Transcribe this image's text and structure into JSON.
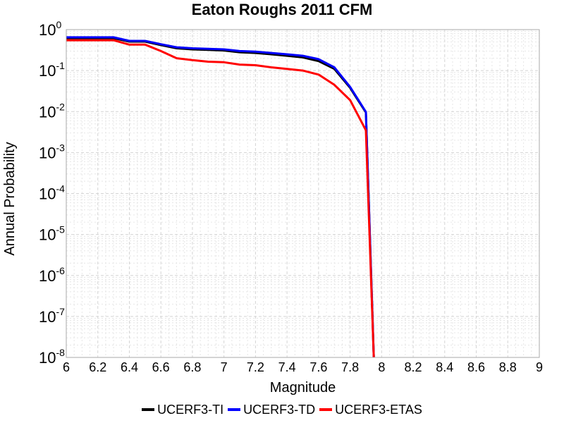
{
  "chart_data": {
    "type": "line",
    "title": "Eaton Roughs 2011 CFM",
    "xlabel": "Magnitude",
    "ylabel": "Annual Probability",
    "xlim": [
      6,
      9
    ],
    "ylim": [
      1e-08,
      1
    ],
    "y_scale": "log",
    "grid": true,
    "legend_position": "bottom",
    "x_ticks": [
      "6",
      "6.2",
      "6.4",
      "6.6",
      "6.8",
      "7",
      "7.2",
      "7.4",
      "7.6",
      "7.8",
      "8",
      "8.2",
      "8.4",
      "8.6",
      "8.8",
      "9"
    ],
    "y_ticks": [
      {
        "base": "10",
        "exp": "0"
      },
      {
        "base": "10",
        "exp": "-1"
      },
      {
        "base": "10",
        "exp": "-2"
      },
      {
        "base": "10",
        "exp": "-3"
      },
      {
        "base": "10",
        "exp": "-4"
      },
      {
        "base": "10",
        "exp": "-5"
      },
      {
        "base": "10",
        "exp": "-6"
      },
      {
        "base": "10",
        "exp": "-7"
      },
      {
        "base": "10",
        "exp": "-8"
      }
    ],
    "series": [
      {
        "name": "UCERF3-TI",
        "color": "#000000",
        "x": [
          6.0,
          6.1,
          6.2,
          6.3,
          6.4,
          6.5,
          6.6,
          6.7,
          6.8,
          6.9,
          7.0,
          7.1,
          7.2,
          7.3,
          7.4,
          7.5,
          7.6,
          7.7,
          7.8,
          7.9,
          7.95
        ],
        "y": [
          0.62,
          0.62,
          0.62,
          0.62,
          0.51,
          0.51,
          0.42,
          0.35,
          0.33,
          0.32,
          0.31,
          0.28,
          0.27,
          0.25,
          0.23,
          0.21,
          0.17,
          0.11,
          0.038,
          0.0095,
          1e-08
        ]
      },
      {
        "name": "UCERF3-TD",
        "color": "#0000ff",
        "x": [
          6.0,
          6.1,
          6.2,
          6.3,
          6.4,
          6.5,
          6.6,
          6.7,
          6.8,
          6.9,
          7.0,
          7.1,
          7.2,
          7.3,
          7.4,
          7.5,
          7.6,
          7.7,
          7.8,
          7.9,
          7.95
        ],
        "y": [
          0.65,
          0.65,
          0.65,
          0.65,
          0.53,
          0.53,
          0.44,
          0.37,
          0.35,
          0.34,
          0.33,
          0.3,
          0.29,
          0.27,
          0.25,
          0.23,
          0.19,
          0.12,
          0.04,
          0.0098,
          1e-08
        ]
      },
      {
        "name": "UCERF3-ETAS",
        "color": "#ff0000",
        "x": [
          6.0,
          6.1,
          6.2,
          6.3,
          6.4,
          6.5,
          6.6,
          6.7,
          6.8,
          6.9,
          7.0,
          7.1,
          7.2,
          7.3,
          7.4,
          7.5,
          7.6,
          7.7,
          7.8,
          7.9,
          7.95
        ],
        "y": [
          0.55,
          0.55,
          0.55,
          0.55,
          0.43,
          0.43,
          0.3,
          0.2,
          0.18,
          0.165,
          0.16,
          0.14,
          0.135,
          0.12,
          0.11,
          0.1,
          0.08,
          0.045,
          0.019,
          0.0035,
          1e-08
        ]
      }
    ]
  }
}
